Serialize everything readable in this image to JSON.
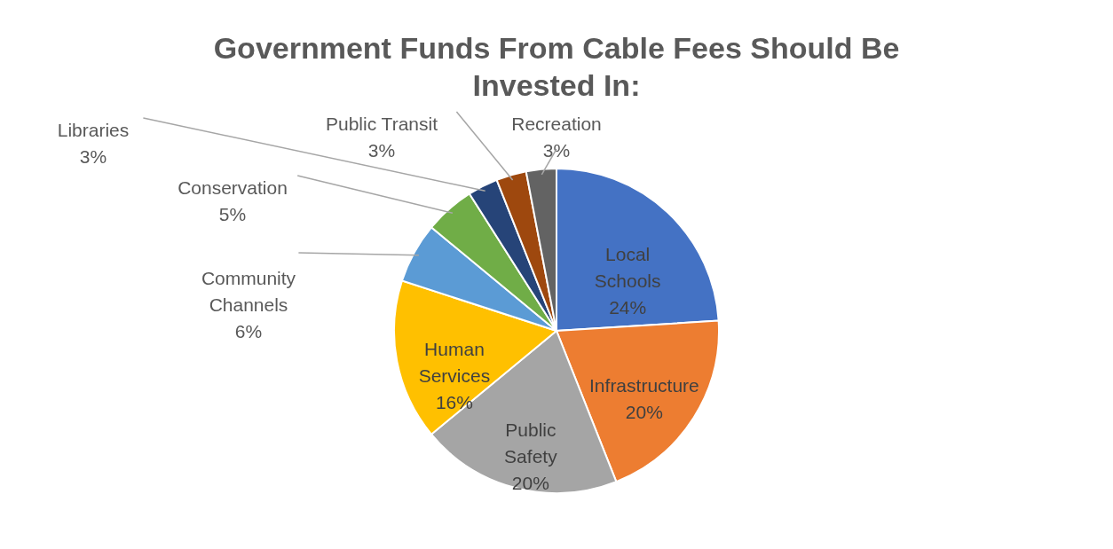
{
  "chart_data": {
    "type": "pie",
    "title": "Government Funds From Cable Fees Should Be Invested In:",
    "categories": [
      "Local Schools",
      "Infrastructure",
      "Public Safety",
      "Human Services",
      "Community Channels",
      "Conservation",
      "Libraries",
      "Public Transit",
      "Recreation"
    ],
    "values": [
      24,
      20,
      20,
      16,
      6,
      5,
      3,
      3,
      3
    ],
    "value_labels": [
      "24%",
      "20%",
      "20%",
      "16%",
      "6%",
      "5%",
      "3%",
      "3%",
      "3%"
    ],
    "colors": [
      "#4472c4",
      "#ed7d31",
      "#a5a5a5",
      "#ffc000",
      "#5b9bd5",
      "#70ad47",
      "#264478",
      "#9e480e",
      "#636363"
    ]
  }
}
